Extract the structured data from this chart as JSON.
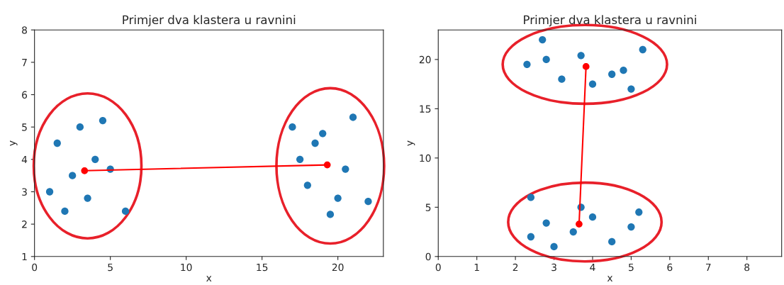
{
  "chart_data": [
    {
      "type": "scatter",
      "title": "Primjer dva klastera u ravnini",
      "xlabel": "x",
      "ylabel": "y",
      "xlim": [
        0,
        23
      ],
      "ylim": [
        1,
        8
      ],
      "xticks": [
        0,
        5,
        10,
        15,
        20
      ],
      "yticks": [
        1,
        2,
        3,
        4,
        5,
        6,
        7,
        8
      ],
      "grid": false,
      "marker": "circle",
      "series": [
        {
          "color": "#1f77b4",
          "x": [
            1,
            1.5,
            2,
            2.5,
            3,
            3.5,
            4,
            4.5,
            5,
            6
          ],
          "values": [
            3,
            4.5,
            2.4,
            3.5,
            5,
            2.8,
            4,
            5.2,
            3.7,
            2.4
          ]
        },
        {
          "color": "#1f77b4",
          "x": [
            17,
            17.5,
            18,
            18.5,
            19,
            19.5,
            20,
            20.5,
            21,
            22
          ],
          "values": [
            5,
            4,
            3.2,
            4.5,
            4.8,
            2.3,
            2.8,
            3.7,
            5.3,
            2.7
          ]
        },
        {
          "type": "line",
          "color": "#ff0000",
          "x": [
            3.3,
            19.3
          ],
          "values": [
            3.65,
            3.83
          ]
        }
      ]
    },
    {
      "type": "scatter",
      "title": "Primjer dva klastera u ravnini",
      "xlabel": "x",
      "ylabel": "y",
      "xlim": [
        0,
        8.9
      ],
      "ylim": [
        0,
        23
      ],
      "xticks": [
        0,
        1,
        2,
        3,
        4,
        5,
        6,
        7,
        8
      ],
      "yticks": [
        0,
        5,
        10,
        15,
        20
      ],
      "grid": false,
      "marker": "circle",
      "series": [
        {
          "color": "#1f77b4",
          "x": [
            2.3,
            2.7,
            2.8,
            3.2,
            3.7,
            4,
            4.5,
            4.8,
            5,
            5.3
          ],
          "values": [
            19.5,
            22,
            20,
            18,
            20.4,
            17.5,
            18.5,
            18.9,
            17,
            21
          ]
        },
        {
          "color": "#1f77b4",
          "x": [
            2.4,
            2.4,
            2.8,
            3,
            3.5,
            3.7,
            4,
            4.5,
            5,
            5.2
          ],
          "values": [
            6,
            2,
            3.4,
            1,
            2.5,
            5,
            4,
            1.5,
            3,
            4.5
          ]
        },
        {
          "type": "line",
          "color": "#ff0000",
          "x": [
            3.83,
            3.65
          ],
          "values": [
            19.28,
            3.29
          ]
        }
      ]
    }
  ]
}
